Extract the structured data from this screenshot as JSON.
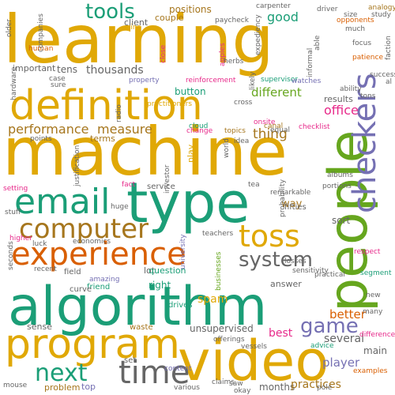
{
  "palette": {
    "gold": "#e0a806",
    "teal": "#1b9e77",
    "orange": "#d95f02",
    "purple": "#7570b3",
    "pink": "#e7298a",
    "green": "#66a61e",
    "brown": "#a6761d",
    "gray": "#666666"
  },
  "words": [
    {
      "text": "learning",
      "color": "gold"
    },
    {
      "text": "machine",
      "color": "gold"
    },
    {
      "text": "definition",
      "color": "gold"
    },
    {
      "text": "type",
      "color": "teal"
    },
    {
      "text": "algorithm",
      "color": "teal"
    },
    {
      "text": "people",
      "color": "green"
    },
    {
      "text": "video",
      "color": "gold"
    },
    {
      "text": "program",
      "color": "gold"
    },
    {
      "text": "experience",
      "color": "orange"
    },
    {
      "text": "checkers",
      "color": "purple"
    },
    {
      "text": "email",
      "color": "teal"
    },
    {
      "text": "toss",
      "color": "gold"
    },
    {
      "text": "computer",
      "color": "brown"
    },
    {
      "text": "time",
      "color": "gray"
    },
    {
      "text": "system",
      "color": "gray"
    },
    {
      "text": "game",
      "color": "purple"
    },
    {
      "text": "next",
      "color": "teal"
    },
    {
      "text": "tools",
      "color": "teal"
    },
    {
      "text": "performance",
      "color": "brown"
    },
    {
      "text": "measure",
      "color": "brown"
    },
    {
      "text": "thing",
      "color": "brown"
    },
    {
      "text": "different",
      "color": "green"
    },
    {
      "text": "office",
      "color": "pink"
    },
    {
      "text": "player",
      "color": "purple"
    },
    {
      "text": "good",
      "color": "teal"
    },
    {
      "text": "tens",
      "color": "gray"
    },
    {
      "text": "thousands",
      "color": "gray"
    },
    {
      "text": "spam",
      "color": "gold"
    },
    {
      "text": "best",
      "color": "pink"
    },
    {
      "text": "better",
      "color": "orange"
    },
    {
      "text": "several",
      "color": "gray"
    },
    {
      "text": "main",
      "color": "gray"
    },
    {
      "text": "months",
      "color": "gray"
    },
    {
      "text": "unsupervised",
      "color": "gray"
    },
    {
      "text": "sort",
      "color": "gray"
    },
    {
      "text": "way",
      "color": "brown"
    },
    {
      "text": "results",
      "color": "gray"
    },
    {
      "text": "positions",
      "color": "brown"
    },
    {
      "text": "couple",
      "color": "brown"
    },
    {
      "text": "client",
      "color": "gray"
    },
    {
      "text": "button",
      "color": "teal"
    },
    {
      "text": "lot",
      "color": "gray"
    },
    {
      "text": "question",
      "color": "teal"
    },
    {
      "text": "right",
      "color": "teal"
    },
    {
      "text": "answer",
      "color": "gray"
    },
    {
      "text": "important",
      "color": "gray"
    },
    {
      "text": "terms",
      "color": "brown"
    },
    {
      "text": "play",
      "color": "gold"
    },
    {
      "text": "fifties",
      "color": "gray"
    },
    {
      "text": "practices",
      "color": "brown"
    },
    {
      "text": "problem",
      "color": "brown"
    },
    {
      "text": "top",
      "color": "purple"
    },
    {
      "text": "set",
      "color": "gray"
    },
    {
      "text": "sense",
      "color": "gray"
    },
    {
      "text": "waste",
      "color": "brown"
    },
    {
      "text": "field",
      "color": "gray"
    },
    {
      "text": "friend",
      "color": "teal"
    },
    {
      "text": "curve",
      "color": "gray"
    },
    {
      "text": "service",
      "color": "gray"
    },
    {
      "text": "huge",
      "color": "gray"
    },
    {
      "text": "luck",
      "color": "gray"
    },
    {
      "text": "economics",
      "color": "gray"
    },
    {
      "text": "teachers",
      "color": "gray"
    },
    {
      "text": "higher",
      "color": "pink"
    },
    {
      "text": "stuff",
      "color": "gray"
    },
    {
      "text": "seconds",
      "color": "gray"
    },
    {
      "text": "recent",
      "color": "gray"
    },
    {
      "text": "amazing",
      "color": "purple"
    },
    {
      "text": "university",
      "color": "purple"
    },
    {
      "text": "businesses",
      "color": "green"
    },
    {
      "text": "drives",
      "color": "teal"
    },
    {
      "text": "offerings",
      "color": "gray"
    },
    {
      "text": "vessels",
      "color": "gray"
    },
    {
      "text": "content",
      "color": "purple"
    },
    {
      "text": "claims",
      "color": "gray"
    },
    {
      "text": "saw",
      "color": "gray"
    },
    {
      "text": "okay",
      "color": "gray"
    },
    {
      "text": "pole",
      "color": "gray"
    },
    {
      "text": "examples",
      "color": "orange"
    },
    {
      "text": "various",
      "color": "gray"
    },
    {
      "text": "mouse",
      "color": "gray"
    },
    {
      "text": "advice",
      "color": "teal"
    },
    {
      "text": "difference",
      "color": "pink"
    },
    {
      "text": "many",
      "color": "gray"
    },
    {
      "text": "new",
      "color": "gray"
    },
    {
      "text": "segment",
      "color": "teal"
    },
    {
      "text": "respect",
      "color": "pink"
    },
    {
      "text": "practical",
      "color": "gray"
    },
    {
      "text": "sensitivity",
      "color": "gray"
    },
    {
      "text": "losses",
      "color": "gray"
    },
    {
      "text": "remarkable",
      "color": "gray"
    },
    {
      "text": "probability",
      "color": "gray"
    },
    {
      "text": "portions",
      "color": "gray"
    },
    {
      "text": "albums",
      "color": "gray"
    },
    {
      "text": "checklist",
      "color": "pink"
    },
    {
      "text": "canal",
      "color": "brown"
    },
    {
      "text": "equal",
      "color": "gray"
    },
    {
      "text": "onsite",
      "color": "pink"
    },
    {
      "text": "topics",
      "color": "brown"
    },
    {
      "text": "idea",
      "color": "gray"
    },
    {
      "text": "cloud",
      "color": "teal"
    },
    {
      "text": "change",
      "color": "pink"
    },
    {
      "text": "world",
      "color": "gray"
    },
    {
      "text": "cross",
      "color": "gray"
    },
    {
      "text": "likely",
      "color": "gray"
    },
    {
      "text": "reinforcement",
      "color": "pink"
    },
    {
      "text": "supervisor",
      "color": "teal"
    },
    {
      "text": "watches",
      "color": "purple"
    },
    {
      "text": "property",
      "color": "purple"
    },
    {
      "text": "practitioners",
      "color": "gold"
    },
    {
      "text": "fact",
      "color": "pink"
    },
    {
      "text": "investor",
      "color": "gray"
    },
    {
      "text": "justification",
      "color": "gray"
    },
    {
      "text": "tea",
      "color": "gray"
    },
    {
      "text": "points",
      "color": "gray"
    },
    {
      "text": "setting",
      "color": "pink"
    },
    {
      "text": "case",
      "color": "gray"
    },
    {
      "text": "sure",
      "color": "gray"
    },
    {
      "text": "hardware",
      "color": "gray"
    },
    {
      "text": "human",
      "color": "orange"
    },
    {
      "text": "companies",
      "color": "gray"
    },
    {
      "text": "older",
      "color": "gray"
    },
    {
      "text": "wins",
      "color": "gold"
    },
    {
      "text": "close",
      "color": "pink"
    },
    {
      "text": "apples",
      "color": "pink"
    },
    {
      "text": "herbs",
      "color": "gray"
    },
    {
      "text": "paycheck",
      "color": "gray"
    },
    {
      "text": "carpenter",
      "color": "gray"
    },
    {
      "text": "expediency",
      "color": "gray"
    },
    {
      "text": "able",
      "color": "gray"
    },
    {
      "text": "informal",
      "color": "gray"
    },
    {
      "text": "driver",
      "color": "gray"
    },
    {
      "text": "opponents",
      "color": "orange"
    },
    {
      "text": "size",
      "color": "gray"
    },
    {
      "text": "study",
      "color": "gray"
    },
    {
      "text": "analogy",
      "color": "brown"
    },
    {
      "text": "much",
      "color": "gray"
    },
    {
      "text": "focus",
      "color": "gray"
    },
    {
      "text": "ability",
      "color": "gray"
    },
    {
      "text": "patience",
      "color": "orange"
    },
    {
      "text": "success",
      "color": "gray"
    },
    {
      "text": "tons",
      "color": "gray"
    },
    {
      "text": "faction",
      "color": "gray"
    },
    {
      "text": "radio",
      "color": "gray"
    },
    {
      "text": "al",
      "color": "gray"
    }
  ]
}
